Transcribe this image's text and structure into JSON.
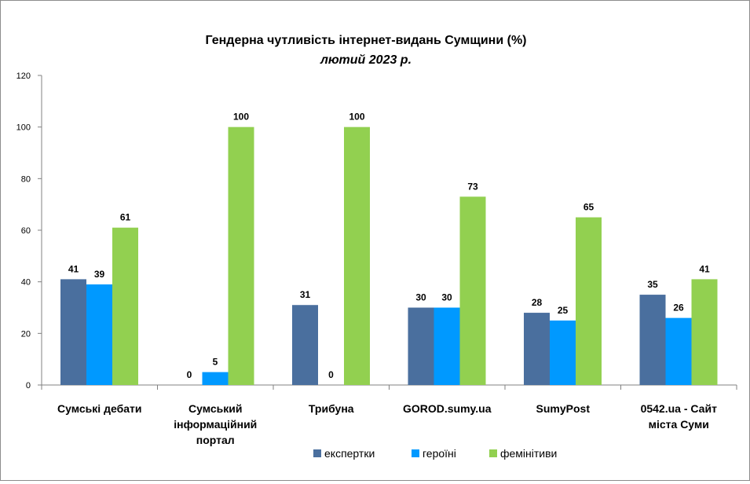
{
  "chart_data": {
    "type": "bar",
    "title": "Гендерна чутливість  інтернет-видань  Сумщини (%)",
    "subtitle": "лютий 2023 р.",
    "categories": [
      [
        "Сумські дебати"
      ],
      [
        "Сумський",
        "інформаційний",
        "портал"
      ],
      [
        "Трибуна"
      ],
      [
        "GOROD.sumy.ua"
      ],
      [
        "SumyPost"
      ],
      [
        "0542.ua - Сайт",
        "міста Суми"
      ]
    ],
    "series": [
      {
        "name": "експертки",
        "color": "#4a6f9e",
        "values": [
          41,
          0,
          31,
          30,
          28,
          35
        ]
      },
      {
        "name": "героїні",
        "color": "#0099ff",
        "values": [
          39,
          5,
          0,
          30,
          25,
          26
        ]
      },
      {
        "name": "фемінітиви",
        "color": "#92d050",
        "values": [
          61,
          100,
          100,
          73,
          65,
          41
        ]
      }
    ],
    "ylim": [
      0,
      120
    ],
    "yticks": [
      "0",
      "20",
      "40",
      "60",
      "80",
      "100",
      "120"
    ],
    "grid": false,
    "legend_position": "bottom"
  }
}
